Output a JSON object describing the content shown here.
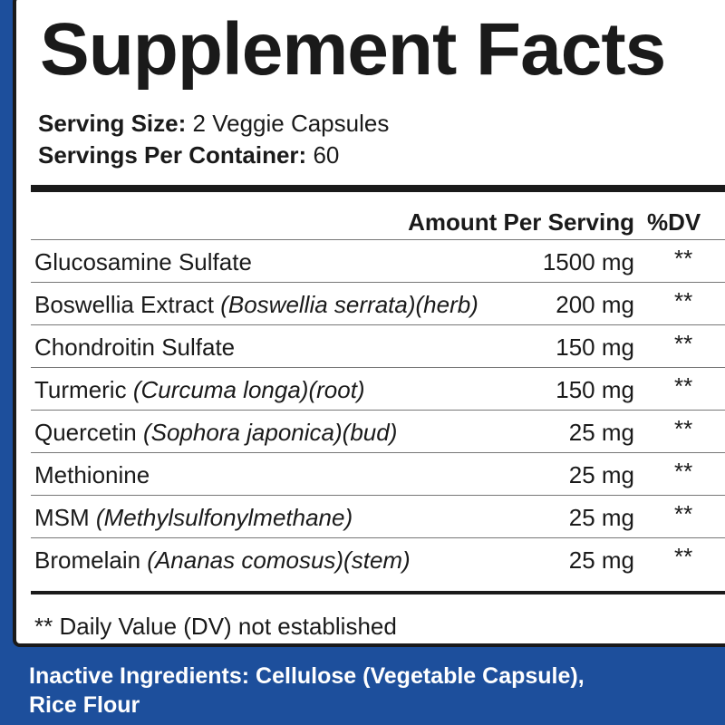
{
  "header": {
    "title": "Supplement Facts",
    "serving_size": {
      "label": "Serving Size:",
      "value": "2 Veggie Capsules"
    },
    "servings_per_container": {
      "label": "Servings Per Container:",
      "value": "60"
    }
  },
  "table": {
    "columns": [
      "Amount Per Serving",
      "%DV"
    ],
    "rows": [
      {
        "name": "Glucosamine Sulfate",
        "detail": null,
        "amount": "1500 mg",
        "dv": "**"
      },
      {
        "name": "Boswellia Extract",
        "detail": "(Boswellia serrata)(herb)",
        "amount": "200 mg",
        "dv": "**"
      },
      {
        "name": "Chondroitin Sulfate",
        "detail": null,
        "amount": "150 mg",
        "dv": "**"
      },
      {
        "name": "Turmeric",
        "detail": "(Curcuma longa)(root)",
        "amount": "150 mg",
        "dv": "**"
      },
      {
        "name": "Quercetin",
        "detail": "(Sophora japonica)(bud)",
        "amount": "25 mg",
        "dv": "**"
      },
      {
        "name": "Methionine",
        "detail": null,
        "amount": "25 mg",
        "dv": "**"
      },
      {
        "name": "MSM",
        "detail": "(Methylsulfonylmethane)",
        "amount": "25 mg",
        "dv": "**"
      },
      {
        "name": "Bromelain",
        "detail": "(Ananas comosus)(stem)",
        "amount": "25 mg",
        "dv": "**"
      }
    ]
  },
  "footnote": "** Daily Value (DV) not established",
  "inactive": {
    "line1": "Inactive Ingredients: Cellulose (Vegetable Capsule),",
    "line2": "Rice Flour"
  }
}
